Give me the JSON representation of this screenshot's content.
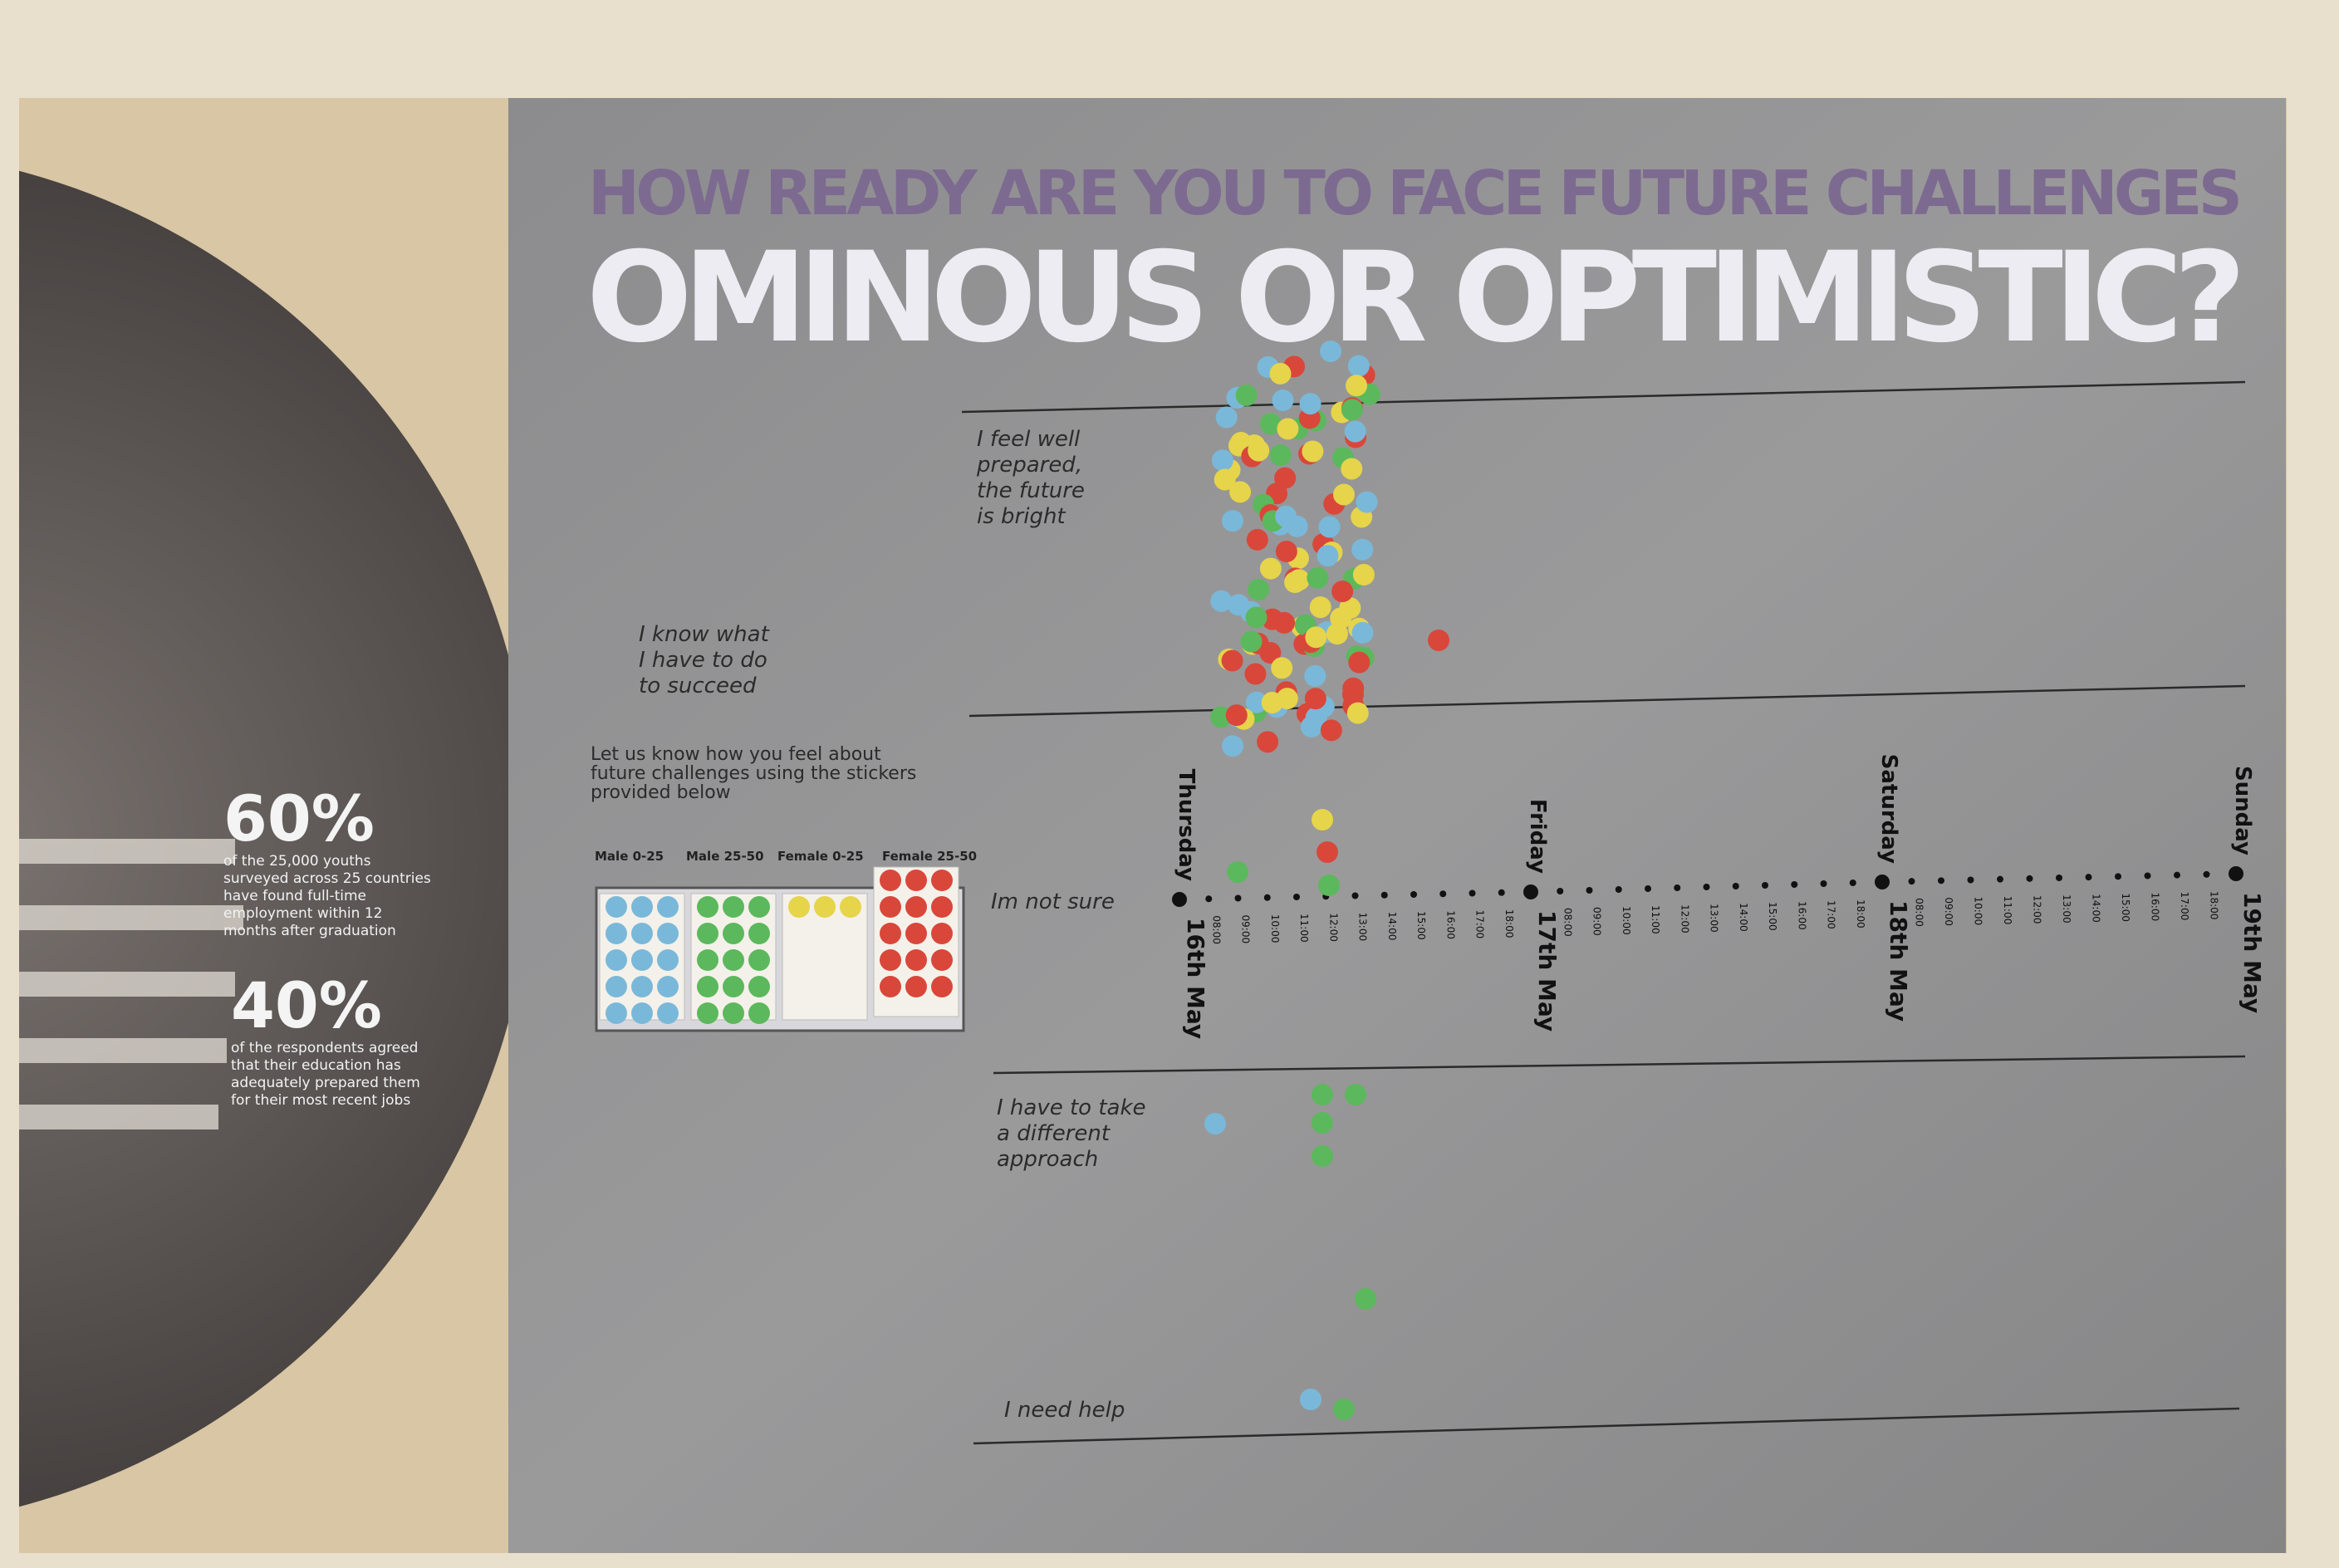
{
  "header": {
    "title": "HOW READY ARE YOU TO FACE FUTURE CHALLENGES",
    "headline": "OMINOUS OR OPTIMISTIC?"
  },
  "stats": [
    {
      "value": "60%",
      "lines": [
        "of the 25,000 youths",
        "surveyed across 25 countries",
        "have found full-time",
        "employment within 12",
        "months after graduation"
      ]
    },
    {
      "value": "40%",
      "lines": [
        "of the respondents agreed",
        "that their education has",
        "adequately prepared them",
        "for their most recent jobs"
      ]
    }
  ],
  "instructions": [
    "Let us know how you feel about",
    "future challenges using the stickers",
    "provided below"
  ],
  "sticker_groups": [
    "Male 0-25",
    "Male 25-50",
    "Female 0-25",
    "Female 25-50"
  ],
  "scale": [
    {
      "lines": [
        "I feel well",
        "prepared,",
        "the future",
        "is bright"
      ]
    },
    {
      "lines": [
        "I know what",
        "I have to do",
        "to succeed"
      ]
    },
    {
      "lines": [
        "Im not sure"
      ]
    },
    {
      "lines": [
        "I have to take",
        "a different",
        "approach"
      ]
    },
    {
      "lines": [
        "I need help"
      ]
    }
  ],
  "timeline": {
    "days": [
      {
        "day": "Thursday",
        "date": "16th May"
      },
      {
        "day": "Friday",
        "date": "17th May"
      },
      {
        "day": "Saturday",
        "date": "18th May"
      },
      {
        "day": "Sunday",
        "date": "19th May"
      }
    ],
    "hours": [
      "08:00",
      "09:00",
      "10:00",
      "11:00",
      "12:00",
      "13:00",
      "14:00",
      "15:00",
      "16:00",
      "17:00",
      "18:00"
    ]
  }
}
